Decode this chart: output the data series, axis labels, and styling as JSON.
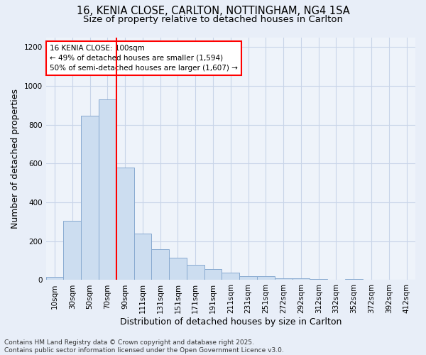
{
  "title_line1": "16, KENIA CLOSE, CARLTON, NOTTINGHAM, NG4 1SA",
  "title_line2": "Size of property relative to detached houses in Carlton",
  "xlabel": "Distribution of detached houses by size in Carlton",
  "ylabel": "Number of detached properties",
  "categories": [
    "10sqm",
    "30sqm",
    "50sqm",
    "70sqm",
    "90sqm",
    "111sqm",
    "131sqm",
    "151sqm",
    "171sqm",
    "191sqm",
    "211sqm",
    "231sqm",
    "251sqm",
    "272sqm",
    "292sqm",
    "312sqm",
    "332sqm",
    "352sqm",
    "372sqm",
    "392sqm",
    "412sqm"
  ],
  "values": [
    18,
    305,
    845,
    930,
    580,
    240,
    160,
    115,
    80,
    55,
    40,
    20,
    20,
    10,
    10,
    5,
    0,
    5,
    0,
    0,
    0
  ],
  "bar_color": "#ccddf0",
  "bar_edge_color": "#88aad0",
  "vline_x_idx": 3.5,
  "vline_color": "red",
  "annotation_text": "16 KENIA CLOSE: 100sqm\n← 49% of detached houses are smaller (1,594)\n50% of semi-detached houses are larger (1,607) →",
  "annotation_box_color": "white",
  "annotation_box_edge_color": "red",
  "ylim": [
    0,
    1250
  ],
  "yticks": [
    0,
    200,
    400,
    600,
    800,
    1000,
    1200
  ],
  "footnote": "Contains HM Land Registry data © Crown copyright and database right 2025.\nContains public sector information licensed under the Open Government Licence v3.0.",
  "bg_color": "#e8eef8",
  "plot_bg_color": "#eef3fa",
  "grid_color": "#c8d4e8",
  "title_fontsize": 10.5,
  "subtitle_fontsize": 9.5,
  "axis_label_fontsize": 9,
  "tick_fontsize": 7.5,
  "annotation_fontsize": 7.5,
  "footnote_fontsize": 6.5
}
